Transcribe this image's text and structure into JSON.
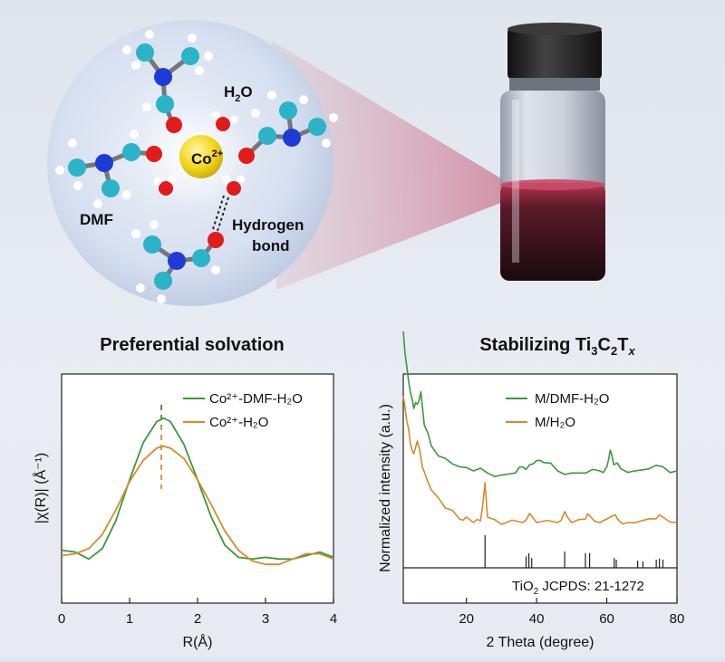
{
  "illustration": {
    "center_ion": "Co",
    "center_ion_charge": "2+",
    "water_label": "H",
    "water_sub": "2",
    "water_tail": "O",
    "dmf_label": "DMF",
    "hbond_line1": "Hydrogen",
    "hbond_line2": "bond"
  },
  "titles": {
    "left": "Preferential solvation",
    "right_prefix": "Stabilizing Ti",
    "right_sub1": "3",
    "right_mid": "C",
    "right_sub2": "2",
    "right_mid2": "T",
    "right_sub3": "x"
  },
  "chart_data": [
    {
      "type": "line",
      "xlabel": "R(Å)",
      "ylabel": "|χ(R)| (Å⁻¹)",
      "xlim": [
        0,
        4
      ],
      "x_ticks": [
        "0",
        "1",
        "2",
        "3",
        "4"
      ],
      "legend_position": "top-right",
      "series": [
        {
          "name": "Co²⁺-DMF-H₂O",
          "color": "#3a9a3a",
          "x": [
            0,
            0.2,
            0.4,
            0.6,
            0.8,
            1.0,
            1.2,
            1.4,
            1.5,
            1.6,
            1.8,
            2.0,
            2.2,
            2.4,
            2.6,
            2.8,
            3.0,
            3.2,
            3.4,
            3.6,
            3.8,
            4.0
          ],
          "y": [
            0.05,
            0.04,
            0.0,
            0.06,
            0.22,
            0.45,
            0.66,
            0.78,
            0.8,
            0.78,
            0.65,
            0.45,
            0.24,
            0.08,
            0.01,
            0.0,
            0.01,
            0.0,
            0.0,
            0.02,
            0.04,
            0.01
          ]
        },
        {
          "name": "Co²⁺-H₂O",
          "color": "#d98a2b",
          "x": [
            0,
            0.2,
            0.4,
            0.6,
            0.8,
            1.0,
            1.2,
            1.4,
            1.5,
            1.6,
            1.8,
            2.0,
            2.2,
            2.4,
            2.6,
            2.8,
            3.0,
            3.2,
            3.4,
            3.6,
            3.8,
            4.0
          ],
          "y": [
            0.02,
            0.03,
            0.06,
            0.14,
            0.28,
            0.44,
            0.56,
            0.63,
            0.64,
            0.63,
            0.57,
            0.45,
            0.31,
            0.16,
            0.05,
            -0.01,
            -0.03,
            -0.03,
            0.0,
            0.03,
            0.03,
            0.0
          ]
        }
      ],
      "annotation": "dashed marker at R ≈ 1.5 Å"
    },
    {
      "type": "line",
      "xlabel": "2 Theta (degree)",
      "ylabel": "Normalized intensity (a.u.)",
      "xlim": [
        2,
        80
      ],
      "x_ticks": [
        "20",
        "40",
        "60",
        "80"
      ],
      "legend_position": "top-right",
      "series": [
        {
          "name": "M/DMF-H₂O",
          "color": "#3a9a3a",
          "x": [
            2,
            3,
            4,
            5,
            6,
            7,
            8,
            10,
            14,
            18,
            22,
            26,
            30,
            34,
            36,
            38,
            40,
            42,
            46,
            50,
            54,
            58,
            60,
            61,
            62,
            64,
            68,
            72,
            76,
            80
          ],
          "y": [
            0.95,
            0.78,
            0.66,
            0.58,
            0.6,
            0.66,
            0.5,
            0.4,
            0.34,
            0.3,
            0.28,
            0.27,
            0.26,
            0.27,
            0.3,
            0.31,
            0.33,
            0.32,
            0.28,
            0.27,
            0.27,
            0.28,
            0.3,
            0.38,
            0.31,
            0.29,
            0.28,
            0.29,
            0.3,
            0.28
          ]
        },
        {
          "name": "M/H₂O",
          "color": "#d98a2b",
          "x": [
            2,
            3,
            4,
            5,
            6,
            7,
            8,
            10,
            14,
            18,
            20,
            22,
            24,
            25.3,
            26,
            30,
            36,
            38,
            40,
            46,
            48,
            50,
            54,
            55,
            58,
            62,
            63,
            66,
            70,
            74,
            76,
            80
          ],
          "y": [
            0.7,
            0.56,
            0.44,
            0.38,
            0.45,
            0.36,
            0.28,
            0.18,
            0.08,
            0.02,
            0.03,
            0.0,
            0.01,
            0.22,
            0.03,
            -0.01,
            0.0,
            0.05,
            0.0,
            0.0,
            0.06,
            0.0,
            0.02,
            0.04,
            0.0,
            0.04,
            0.02,
            0.0,
            0.01,
            0.02,
            0.03,
            0.0
          ]
        }
      ],
      "reference": {
        "label_prefix": "TiO",
        "label_sub": "2",
        "label_suffix": " JCPDS: 21-1272",
        "peaks": [
          25.3,
          37.0,
          37.8,
          38.6,
          48.0,
          53.9,
          55.1,
          62.1,
          62.7,
          68.8,
          70.3,
          74.1,
          75.0,
          76.0
        ],
        "heights": [
          1.0,
          0.35,
          0.45,
          0.3,
          0.5,
          0.45,
          0.45,
          0.3,
          0.25,
          0.22,
          0.2,
          0.25,
          0.28,
          0.25
        ]
      }
    }
  ]
}
